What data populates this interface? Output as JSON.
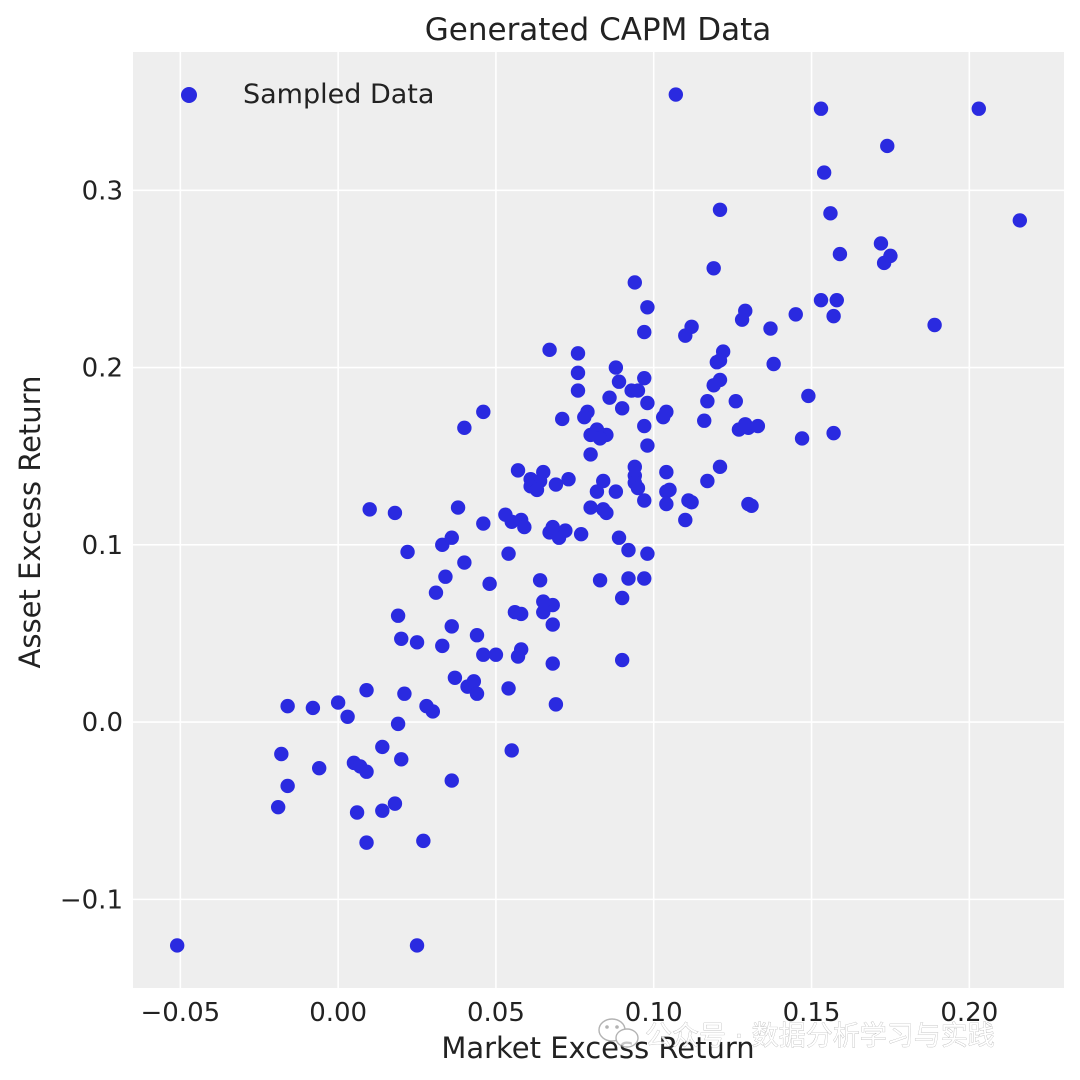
{
  "chart_data": {
    "type": "scatter",
    "title": "Generated CAPM Data",
    "xlabel": "Market Excess Return",
    "ylabel": "Asset Excess Return",
    "xlim": [
      -0.065,
      0.23
    ],
    "ylim": [
      -0.15,
      0.378
    ],
    "xticks": [
      -0.05,
      0.0,
      0.05,
      0.1,
      0.15,
      0.2
    ],
    "xtick_labels": [
      "−0.05",
      "0.00",
      "0.05",
      "0.10",
      "0.15",
      "0.20"
    ],
    "yticks": [
      -0.1,
      0.0,
      0.1,
      0.2,
      0.3
    ],
    "ytick_labels": [
      "−0.1",
      "0.0",
      "0.1",
      "0.2",
      "0.3"
    ],
    "grid": true,
    "legend_position": "top-left",
    "colors": {
      "background": "#eeeeee",
      "grid": "#ffffff",
      "marker": "#2a2ae0"
    },
    "series": [
      {
        "name": "Sampled Data",
        "x": [
          -0.051,
          0.025,
          0.107,
          0.153,
          0.203,
          0.174,
          0.154,
          0.121,
          0.156,
          0.216,
          0.159,
          0.172,
          0.173,
          0.175,
          0.119,
          0.094,
          0.153,
          0.158,
          0.098,
          0.129,
          0.157,
          0.189,
          0.128,
          0.145,
          0.112,
          0.11,
          0.097,
          0.137,
          0.067,
          0.076,
          0.122,
          0.12,
          0.088,
          0.138,
          0.121,
          0.076,
          0.093,
          0.097,
          0.076,
          0.089,
          0.095,
          0.121,
          0.126,
          0.149,
          0.086,
          0.117,
          0.079,
          0.098,
          0.104,
          0.078,
          0.09,
          0.119,
          0.116,
          0.103,
          0.13,
          0.097,
          0.127,
          0.133,
          0.147,
          0.157,
          0.129,
          0.085,
          0.082,
          0.08,
          0.083,
          0.04,
          0.046,
          0.071,
          0.098,
          0.104,
          0.094,
          0.112,
          0.094,
          0.121,
          0.08,
          0.065,
          0.061,
          0.057,
          0.064,
          0.061,
          0.073,
          0.094,
          0.104,
          0.069,
          0.063,
          0.084,
          0.095,
          0.088,
          0.105,
          0.117,
          0.111,
          0.097,
          0.13,
          0.08,
          0.084,
          0.104,
          0.131,
          0.11,
          0.085,
          0.082,
          0.058,
          0.046,
          0.059,
          0.053,
          0.055,
          0.072,
          0.067,
          0.07,
          0.077,
          0.068,
          0.089,
          0.092,
          0.01,
          0.018,
          0.038,
          0.033,
          0.022,
          0.036,
          0.054,
          0.04,
          0.034,
          0.098,
          0.064,
          0.092,
          0.048,
          0.083,
          0.097,
          0.09,
          0.019,
          0.068,
          0.065,
          0.056,
          0.058,
          0.065,
          0.068,
          0.031,
          0.044,
          0.02,
          0.036,
          0.025,
          0.046,
          0.05,
          0.058,
          0.033,
          0.057,
          0.068,
          0.09,
          0.009,
          0.021,
          0.037,
          0.041,
          0.043,
          0.054,
          0.044,
          0.069,
          -0.016,
          -0.008,
          0.0,
          0.003,
          0.019,
          0.028,
          0.03,
          -0.018,
          -0.006,
          0.005,
          0.007,
          0.009,
          0.014,
          0.02,
          0.055,
          -0.016,
          -0.019,
          0.006,
          0.014,
          0.018,
          0.036,
          0.009,
          0.027
        ],
        "y": [
          -0.126,
          -0.126,
          0.354,
          0.346,
          0.346,
          0.325,
          0.31,
          0.289,
          0.287,
          0.283,
          0.264,
          0.27,
          0.259,
          0.263,
          0.256,
          0.248,
          0.238,
          0.238,
          0.234,
          0.232,
          0.229,
          0.224,
          0.227,
          0.23,
          0.223,
          0.218,
          0.22,
          0.222,
          0.21,
          0.208,
          0.209,
          0.203,
          0.2,
          0.202,
          0.193,
          0.197,
          0.187,
          0.194,
          0.187,
          0.192,
          0.187,
          0.204,
          0.181,
          0.184,
          0.183,
          0.181,
          0.175,
          0.18,
          0.175,
          0.172,
          0.177,
          0.19,
          0.17,
          0.172,
          0.166,
          0.167,
          0.165,
          0.167,
          0.16,
          0.163,
          0.168,
          0.162,
          0.165,
          0.162,
          0.16,
          0.166,
          0.175,
          0.171,
          0.156,
          0.141,
          0.139,
          0.124,
          0.144,
          0.144,
          0.151,
          0.141,
          0.137,
          0.142,
          0.136,
          0.133,
          0.137,
          0.135,
          0.13,
          0.134,
          0.131,
          0.136,
          0.132,
          0.13,
          0.131,
          0.136,
          0.125,
          0.125,
          0.123,
          0.121,
          0.12,
          0.123,
          0.122,
          0.114,
          0.118,
          0.13,
          0.114,
          0.112,
          0.11,
          0.117,
          0.113,
          0.108,
          0.107,
          0.104,
          0.106,
          0.11,
          0.104,
          0.097,
          0.12,
          0.118,
          0.121,
          0.1,
          0.096,
          0.104,
          0.095,
          0.09,
          0.082,
          0.095,
          0.08,
          0.081,
          0.078,
          0.08,
          0.081,
          0.07,
          0.06,
          0.066,
          0.068,
          0.062,
          0.061,
          0.062,
          0.055,
          0.073,
          0.049,
          0.047,
          0.054,
          0.045,
          0.038,
          0.038,
          0.041,
          0.043,
          0.037,
          0.033,
          0.035,
          0.018,
          0.016,
          0.025,
          0.02,
          0.023,
          0.019,
          0.016,
          0.01,
          0.009,
          0.008,
          0.011,
          0.003,
          -0.001,
          0.009,
          0.006,
          -0.018,
          -0.026,
          -0.023,
          -0.025,
          -0.028,
          -0.014,
          -0.021,
          -0.016,
          -0.036,
          -0.048,
          -0.051,
          -0.05,
          -0.046,
          -0.033,
          -0.068,
          -0.067
        ]
      }
    ]
  },
  "watermark": {
    "icon": "wechat-icon",
    "text": "公众号 · 数据分析学习与实践"
  }
}
